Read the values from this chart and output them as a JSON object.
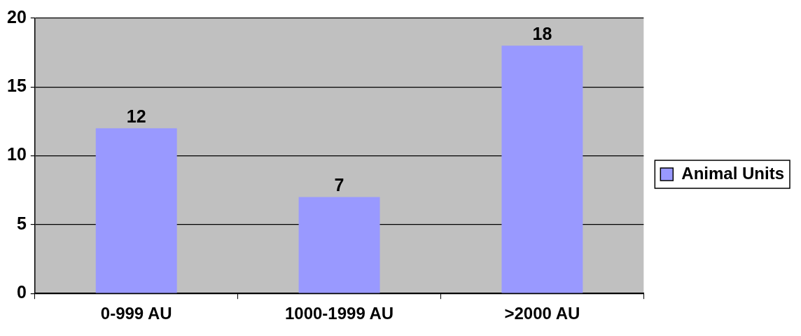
{
  "chart_data": {
    "type": "bar",
    "categories": [
      "0-999 AU",
      "1000-1999 AU",
      ">2000 AU"
    ],
    "series": [
      {
        "name": "Animal Units",
        "color": "#9999ff",
        "values": [
          12,
          7,
          18
        ]
      }
    ],
    "ylim": [
      0,
      20
    ],
    "yticks": [
      0,
      5,
      10,
      15,
      20
    ],
    "grid": "y",
    "legend": "right",
    "data_labels": true
  }
}
